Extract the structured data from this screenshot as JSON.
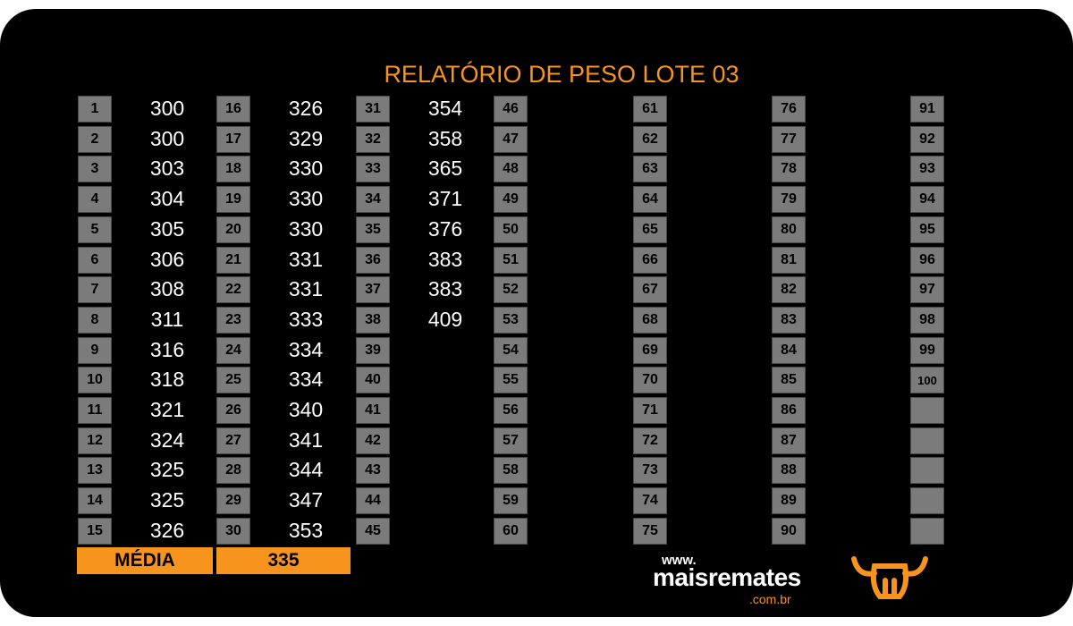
{
  "title": "RELATÓRIO DE PESO LOTE 03",
  "columns": [
    {
      "numbers": [
        1,
        2,
        3,
        4,
        5,
        6,
        7,
        8,
        9,
        10,
        11,
        12,
        13,
        14,
        15
      ],
      "weights": [
        300,
        300,
        303,
        304,
        305,
        306,
        308,
        311,
        316,
        318,
        321,
        324,
        325,
        325,
        326
      ]
    },
    {
      "numbers": [
        16,
        17,
        18,
        19,
        20,
        21,
        22,
        23,
        24,
        25,
        26,
        27,
        28,
        29,
        30
      ],
      "weights": [
        326,
        329,
        330,
        330,
        330,
        331,
        331,
        333,
        334,
        334,
        340,
        341,
        344,
        347,
        353
      ]
    },
    {
      "numbers": [
        31,
        32,
        33,
        34,
        35,
        36,
        37,
        38,
        39,
        40,
        41,
        42,
        43,
        44,
        45
      ],
      "weights": [
        354,
        358,
        365,
        371,
        376,
        383,
        383,
        409
      ]
    },
    {
      "numbers": [
        46,
        47,
        48,
        49,
        50,
        51,
        52,
        53,
        54,
        55,
        56,
        57,
        58,
        59,
        60
      ],
      "weights": []
    },
    {
      "numbers": [
        61,
        62,
        63,
        64,
        65,
        66,
        67,
        68,
        69,
        70,
        71,
        72,
        73,
        74,
        75
      ],
      "weights": []
    },
    {
      "numbers": [
        76,
        77,
        78,
        79,
        80,
        81,
        82,
        83,
        84,
        85,
        86,
        87,
        88,
        89,
        90
      ],
      "weights": []
    },
    {
      "numbers": [
        91,
        92,
        93,
        94,
        95,
        96,
        97,
        98,
        99,
        100
      ],
      "weights": []
    }
  ],
  "footer": {
    "label": "MÉDIA",
    "value": 335
  },
  "logo": {
    "prefix": "www.",
    "name": "maisremates",
    "suffix": ".com.br"
  }
}
